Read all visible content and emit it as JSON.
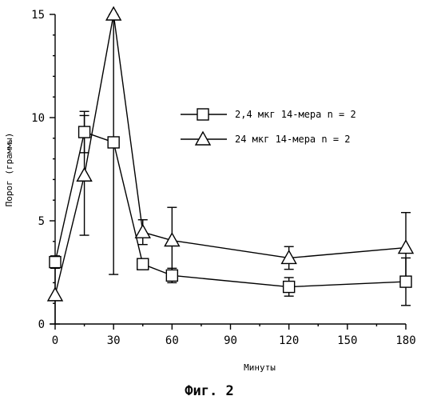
{
  "chart_data": {
    "type": "line",
    "title": "",
    "xlabel": "Минуты",
    "ylabel": "Порог (граммы)",
    "x": [
      0,
      15,
      30,
      45,
      60,
      120,
      180
    ],
    "x_ticks": [
      0,
      30,
      60,
      90,
      120,
      150,
      180
    ],
    "y_ticks": [
      0,
      5,
      10,
      15
    ],
    "xlim": [
      0,
      180
    ],
    "ylim": [
      0,
      15
    ],
    "grid": false,
    "legend_position": "right-middle",
    "series": [
      {
        "name": "2,4 мкг 14-мера n = 2",
        "marker": "square",
        "values": [
          3.0,
          9.3,
          8.8,
          2.9,
          2.35,
          1.8,
          2.05
        ],
        "error": [
          0.3,
          1.0,
          6.4,
          0.0,
          0.35,
          0.45,
          1.15
        ]
      },
      {
        "name": "24 мкг 14-мера n = 2",
        "marker": "triangle",
        "values": [
          1.4,
          7.2,
          15.0,
          4.45,
          4.05,
          3.2,
          3.7
        ],
        "error": [
          1.5,
          2.9,
          0.0,
          0.6,
          1.6,
          0.55,
          1.7
        ]
      }
    ]
  },
  "caption": "Фиг. 2"
}
